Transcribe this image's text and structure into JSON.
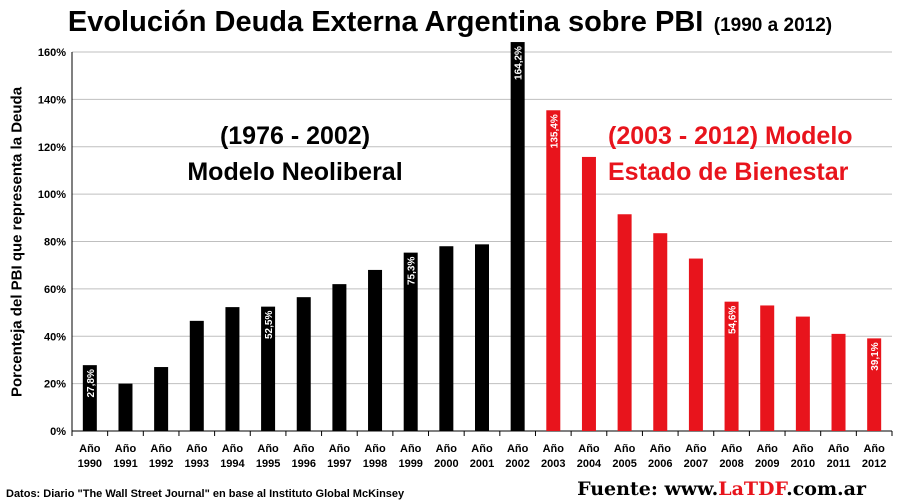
{
  "colors": {
    "neoliberal": "#000000",
    "bienestar": "#e8141c",
    "grid": "#bfbfbf"
  },
  "header": {
    "title": "Evolución Deuda Externa Argentina sobre PBI",
    "subtitle": "(1990 a 2012)"
  },
  "annotations": {
    "left_line1": "(1976 - 2002)",
    "left_line2": "Modelo Neoliberal",
    "right_line1": "(2003 - 2012) Modelo",
    "right_line2": "Estado de Bienestar"
  },
  "footer": {
    "source": "Datos: Diario \"The Wall Street Journal\" en base al Instituto Global McKinsey",
    "credit_prefix": "Fuente: www.",
    "credit_brand": "LaTDF",
    "credit_suffix": ".com.ar"
  },
  "chart_data": {
    "type": "bar",
    "title": "Evolución Deuda Externa Argentina sobre PBI (1990 a 2012)",
    "xlabel": "",
    "ylabel": "Porcenteja del PBI que representa la Deuda",
    "ylim": [
      0,
      160
    ],
    "yticks": [
      0,
      20,
      40,
      60,
      80,
      100,
      120,
      140,
      160
    ],
    "ytick_labels": [
      "0%",
      "20%",
      "40%",
      "60%",
      "80%",
      "100%",
      "120%",
      "140%",
      "160%"
    ],
    "grid": true,
    "category_prefix": "Año",
    "categories": [
      "1990",
      "1991",
      "1992",
      "1993",
      "1994",
      "1995",
      "1996",
      "1997",
      "1998",
      "1999",
      "2000",
      "2001",
      "2002",
      "2003",
      "2004",
      "2005",
      "2006",
      "2007",
      "2008",
      "2009",
      "2010",
      "2011",
      "2012"
    ],
    "values": [
      27.8,
      20,
      27,
      46.5,
      52.3,
      52.5,
      56.5,
      62,
      68,
      75.3,
      78,
      78.8,
      164.2,
      135.4,
      115.7,
      91.5,
      83.5,
      72.8,
      54.6,
      53,
      48.3,
      41,
      39.1
    ],
    "series_groups": [
      "neoliberal",
      "neoliberal",
      "neoliberal",
      "neoliberal",
      "neoliberal",
      "neoliberal",
      "neoliberal",
      "neoliberal",
      "neoliberal",
      "neoliberal",
      "neoliberal",
      "neoliberal",
      "neoliberal",
      "bienestar",
      "bienestar",
      "bienestar",
      "bienestar",
      "bienestar",
      "bienestar",
      "bienestar",
      "bienestar",
      "bienestar",
      "bienestar"
    ],
    "data_labels": [
      "27,8%",
      "",
      "",
      "",
      "",
      "52,5%",
      "",
      "",
      "",
      "75,3%",
      "",
      "",
      "164,2%",
      "135,4%",
      "",
      "",
      "",
      "",
      "54,6%",
      "",
      "",
      "",
      "39,1%"
    ]
  }
}
